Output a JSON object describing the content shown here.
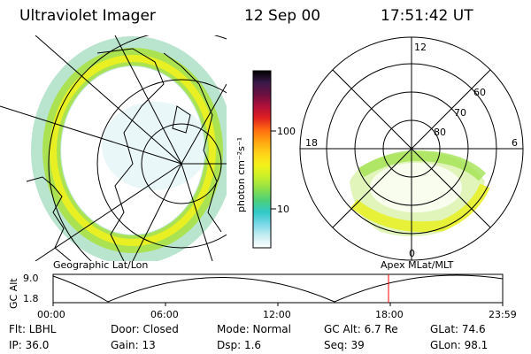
{
  "header": {
    "instrument": "Ultraviolet Imager",
    "date": "12 Sep 00",
    "time": "17:51:42 UT"
  },
  "left_map": {
    "caption": "Geographic Lat/Lon"
  },
  "right_map": {
    "caption": "Apex MLat/MLT",
    "mlt_labels": [
      "12",
      "18",
      "6",
      "0"
    ],
    "lat_labels": [
      "60",
      "70",
      "80"
    ]
  },
  "colorbar": {
    "unit_label": "photon cm⁻²s⁻¹",
    "ticks": [
      "100",
      "10"
    ],
    "colors": [
      "#000000",
      "#3a1a4a",
      "#6a1040",
      "#b0103a",
      "#e02020",
      "#ff6a10",
      "#ffa510",
      "#ffd21a",
      "#f2f21a",
      "#c8f02a",
      "#8ce04a",
      "#4ccf7a",
      "#30c8c8",
      "#7ad8e8",
      "#c8eef2",
      "#ffffff"
    ]
  },
  "altitude_panel": {
    "axis_title": "GC Alt",
    "y_ticks": [
      "9.0",
      "1.8"
    ],
    "x_ticks": [
      "00:00",
      "06:00",
      "12:00",
      "18:00",
      "23:59"
    ],
    "marker_color": "#ff0000"
  },
  "info": {
    "row1": {
      "filter": "Flt: LBHL",
      "door": "Door: Closed",
      "mode": "Mode: Normal",
      "gc_alt": "GC Alt: 6.7 Re",
      "glat": "GLat:  74.6"
    },
    "row2": {
      "ip": "IP: 36.0",
      "gain": "Gain: 13",
      "dsp": "Dsp:   1.6",
      "seq": "Seq: 39",
      "glon": "GLon:  98.1"
    }
  }
}
